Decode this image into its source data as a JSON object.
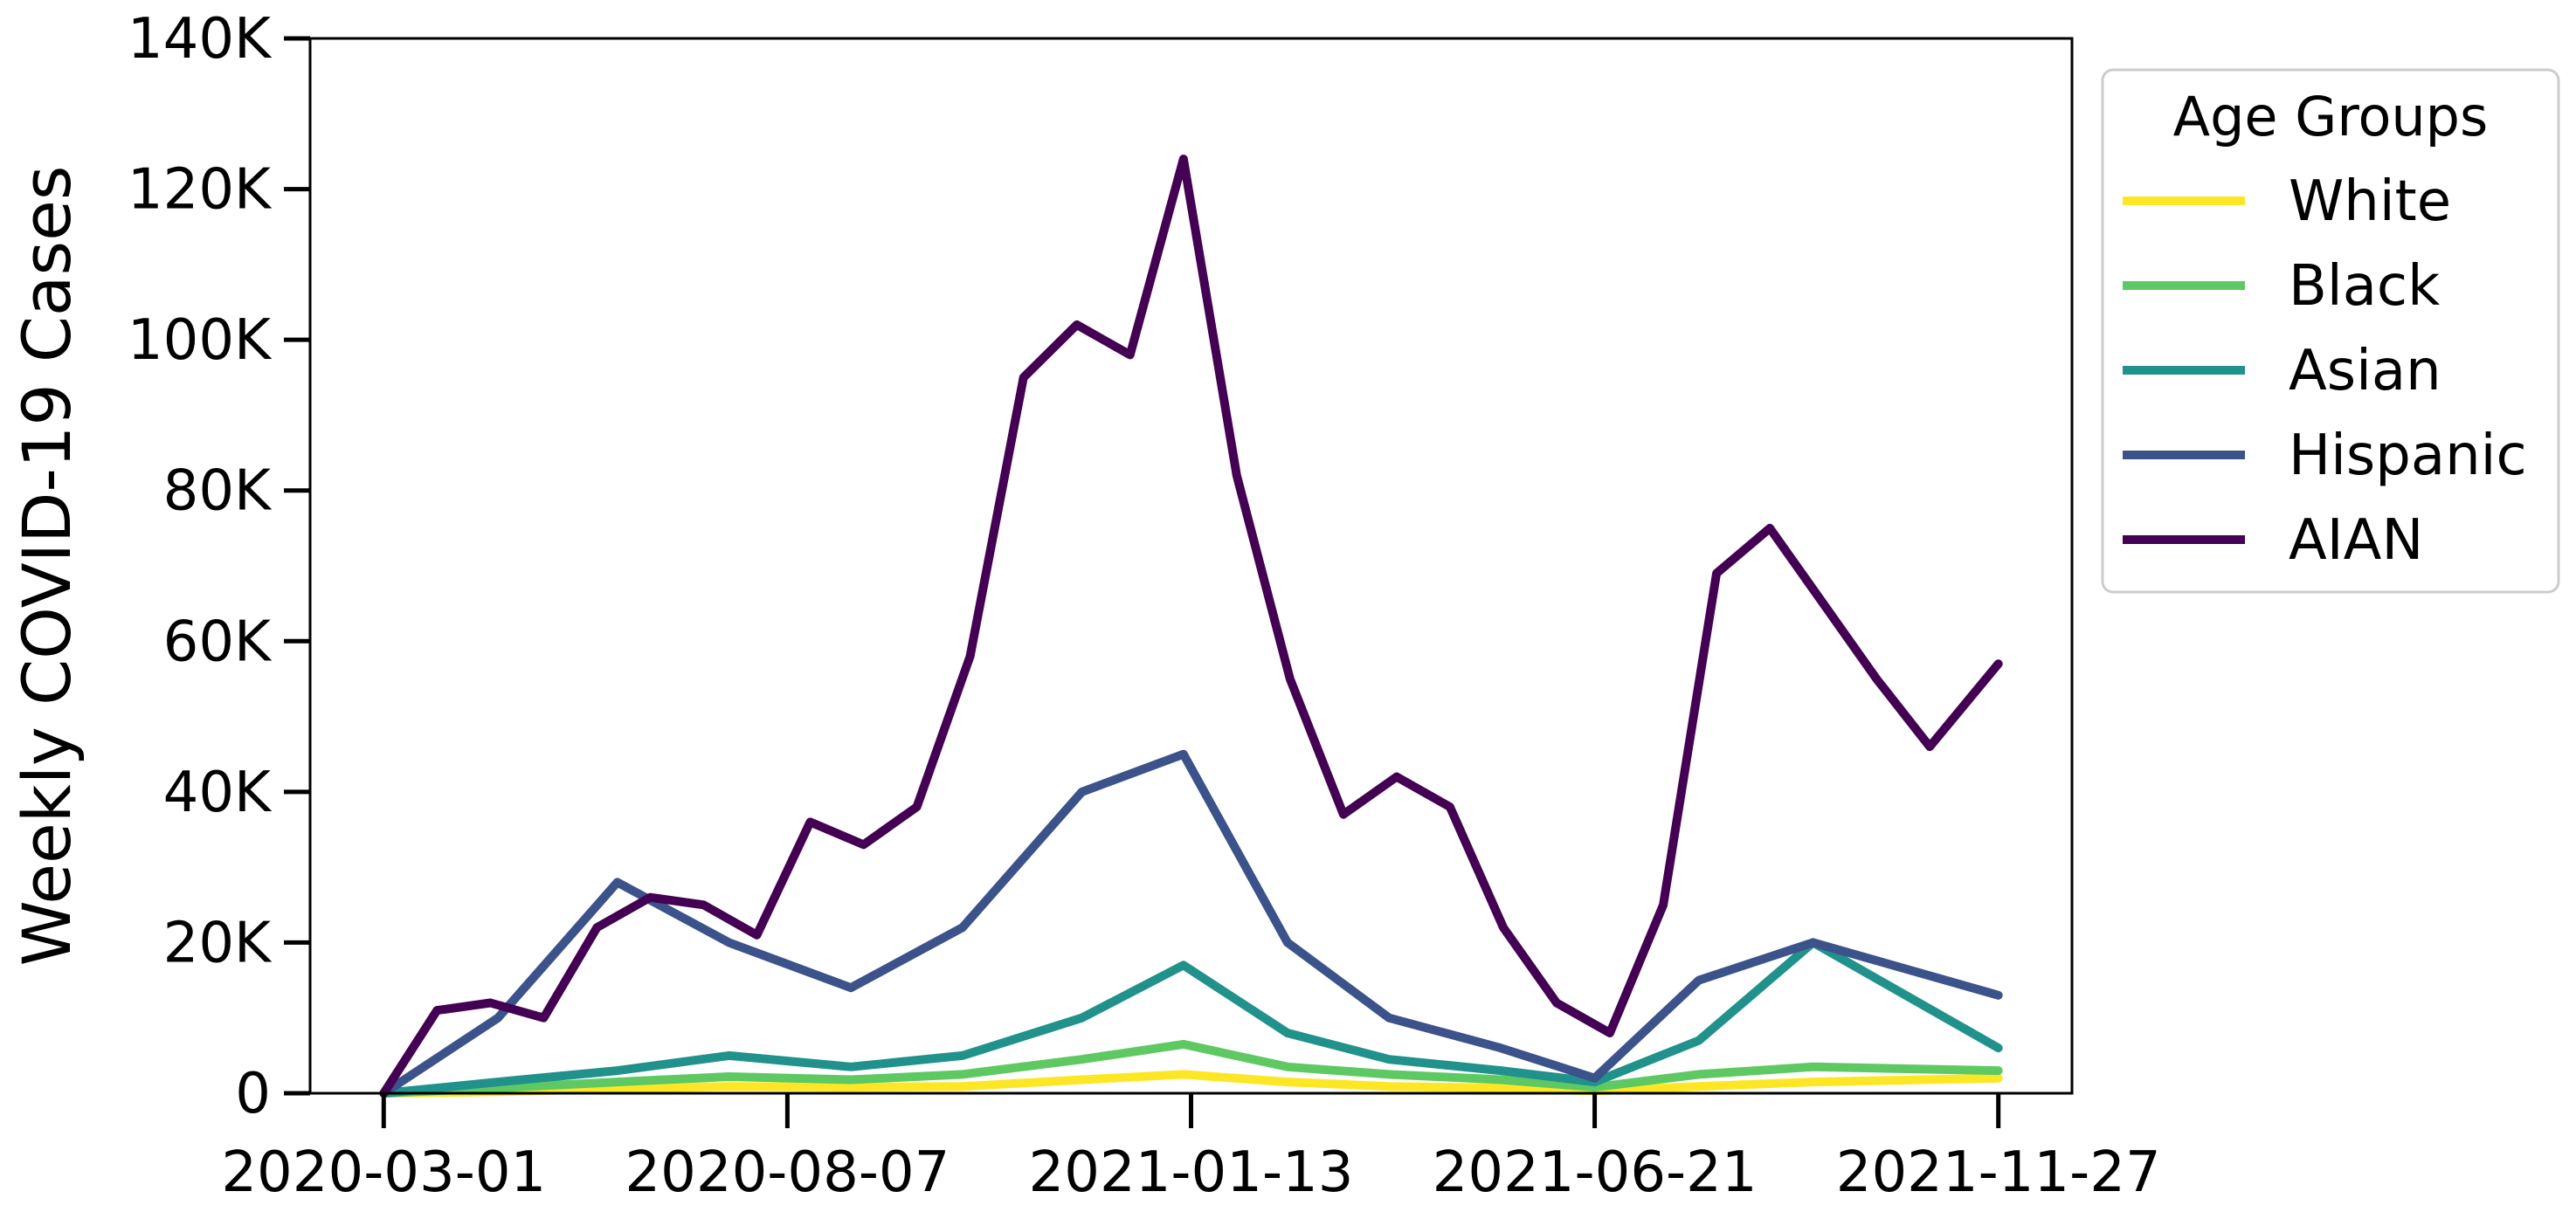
{
  "chart_data": {
    "type": "line",
    "title": "",
    "xlabel": "",
    "ylabel": "Weekly COVID-19 Cases",
    "ylim": [
      0,
      140000
    ],
    "y_ticks": [
      0,
      20000,
      40000,
      60000,
      80000,
      100000,
      120000,
      140000
    ],
    "y_tick_labels": [
      "0",
      "20K",
      "40K",
      "60K",
      "80K",
      "100K",
      "120K",
      "140K"
    ],
    "xlim": [
      "2020-02-01",
      "2021-12-26"
    ],
    "x_ticks": [
      "2020-03-01",
      "2020-08-07",
      "2021-01-13",
      "2021-06-21",
      "2021-11-27"
    ],
    "x_tick_labels": [
      "2020-03-01",
      "2020-08-07",
      "2021-01-13",
      "2021-06-21",
      "2021-11-27"
    ],
    "grid": false,
    "legend": {
      "title": "Age Groups",
      "placement": "outside-right-top"
    },
    "series": [
      {
        "name": "White",
        "color": "#fde725",
        "x": [
          "2020-03-01",
          "2020-04-15",
          "2020-06-01",
          "2020-07-15",
          "2020-09-01",
          "2020-10-15",
          "2020-12-01",
          "2021-01-10",
          "2021-02-20",
          "2021-04-01",
          "2021-05-15",
          "2021-06-21",
          "2021-08-01",
          "2021-09-15",
          "2021-11-27"
        ],
        "y": [
          0,
          200,
          600,
          900,
          800,
          900,
          1800,
          2500,
          1500,
          900,
          700,
          300,
          900,
          1500,
          2000
        ]
      },
      {
        "name": "Black",
        "color": "#5ec962",
        "x": [
          "2020-03-01",
          "2020-04-15",
          "2020-06-01",
          "2020-07-15",
          "2020-09-01",
          "2020-10-15",
          "2020-12-01",
          "2021-01-10",
          "2021-02-20",
          "2021-04-01",
          "2021-05-15",
          "2021-06-21",
          "2021-08-01",
          "2021-09-15",
          "2021-11-27"
        ],
        "y": [
          0,
          700,
          1500,
          2200,
          1800,
          2500,
          4500,
          6500,
          3500,
          2500,
          1800,
          800,
          2500,
          3500,
          3000
        ]
      },
      {
        "name": "Asian",
        "color": "#21918c",
        "x": [
          "2020-03-01",
          "2020-04-15",
          "2020-06-01",
          "2020-07-15",
          "2020-09-01",
          "2020-10-15",
          "2020-12-01",
          "2021-01-10",
          "2021-02-20",
          "2021-04-01",
          "2021-05-15",
          "2021-06-21",
          "2021-08-01",
          "2021-09-15",
          "2021-11-27"
        ],
        "y": [
          0,
          1500,
          3000,
          5000,
          3500,
          5000,
          10000,
          17000,
          8000,
          4500,
          3000,
          1500,
          7000,
          20000,
          6000
        ]
      },
      {
        "name": "Hispanic",
        "color": "#3b528b",
        "x": [
          "2020-03-01",
          "2020-04-15",
          "2020-06-01",
          "2020-07-15",
          "2020-09-01",
          "2020-10-15",
          "2020-12-01",
          "2021-01-10",
          "2021-02-20",
          "2021-04-01",
          "2021-05-15",
          "2021-06-21",
          "2021-08-01",
          "2021-09-15",
          "2021-11-27"
        ],
        "y": [
          0,
          10000,
          28000,
          20000,
          14000,
          22000,
          40000,
          45000,
          20000,
          10000,
          6000,
          2000,
          15000,
          20000,
          13000
        ]
      },
      {
        "name": "AIAN",
        "color": "#440154",
        "x": [
          "2020-03-01",
          "2020-03-22",
          "2020-04-12",
          "2020-05-03",
          "2020-05-24",
          "2020-06-14",
          "2020-07-05",
          "2020-07-26",
          "2020-08-16",
          "2020-09-06",
          "2020-09-27",
          "2020-10-18",
          "2020-11-08",
          "2020-11-29",
          "2020-12-20",
          "2021-01-10",
          "2021-01-31",
          "2021-02-21",
          "2021-03-14",
          "2021-04-04",
          "2021-04-25",
          "2021-05-16",
          "2021-06-06",
          "2021-06-27",
          "2021-07-18",
          "2021-08-08",
          "2021-08-29",
          "2021-09-19",
          "2021-10-10",
          "2021-10-31",
          "2021-11-27"
        ],
        "y": [
          0,
          11000,
          12000,
          10000,
          22000,
          26000,
          25000,
          21000,
          36000,
          33000,
          38000,
          58000,
          95000,
          102000,
          98000,
          124000,
          82000,
          55000,
          37000,
          42000,
          38000,
          22000,
          12000,
          8000,
          25000,
          69000,
          75000,
          65000,
          55000,
          46000,
          57000
        ]
      }
    ]
  }
}
